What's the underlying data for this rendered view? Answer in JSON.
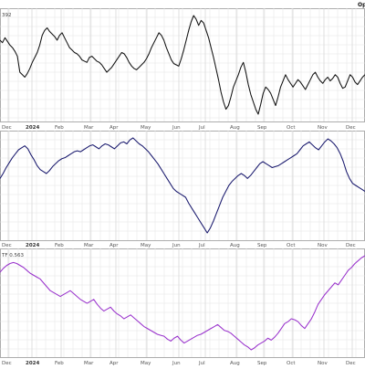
{
  "corner_label": "Op",
  "chart_data": [
    {
      "type": "line",
      "panel_label": "392",
      "color": "#111111",
      "x_tick_labels": [
        "Dec",
        "2024",
        "Feb",
        "Mar",
        "Apr",
        "May",
        "Jun",
        "Jul",
        "Aug",
        "Sep",
        "Oct",
        "Nov",
        "Dec"
      ],
      "grid": true,
      "series": [
        {
          "values": [
            68,
            66,
            70,
            67,
            64,
            62,
            59,
            55,
            42,
            40,
            38,
            41,
            45,
            50,
            54,
            58,
            64,
            72,
            76,
            78,
            75,
            73,
            71,
            68,
            72,
            74,
            70,
            66,
            62,
            60,
            58,
            57,
            55,
            52,
            51,
            50,
            54,
            55,
            53,
            51,
            50,
            48,
            45,
            42,
            44,
            46,
            49,
            52,
            55,
            58,
            57,
            54,
            50,
            47,
            45,
            44,
            46,
            48,
            50,
            53,
            57,
            62,
            66,
            70,
            74,
            72,
            68,
            62,
            57,
            52,
            49,
            48,
            47,
            53,
            60,
            68,
            76,
            83,
            88,
            85,
            80,
            84,
            82,
            76,
            70,
            62,
            54,
            45,
            36,
            26,
            18,
            12,
            15,
            22,
            30,
            35,
            40,
            46,
            50,
            42,
            32,
            24,
            18,
            12,
            8,
            16,
            25,
            30,
            28,
            25,
            20,
            15,
            22,
            30,
            35,
            40,
            36,
            33,
            30,
            33,
            36,
            34,
            31,
            28,
            32,
            36,
            40,
            42,
            38,
            35,
            33,
            36,
            38,
            35,
            37,
            40,
            38,
            33,
            29,
            30,
            35,
            40,
            38,
            34,
            32,
            35,
            38,
            40
          ]
        }
      ]
    },
    {
      "type": "line",
      "panel_label": "",
      "color": "#1a1a6e",
      "x_tick_labels": [
        "Dec",
        "2024",
        "Feb",
        "Mar",
        "Apr",
        "May",
        "Jun",
        "Jul",
        "Aug",
        "Sep",
        "Oct",
        "Nov",
        "Dec"
      ],
      "grid": true,
      "series": [
        {
          "values": [
            55,
            60,
            66,
            71,
            76,
            80,
            84,
            86,
            88,
            85,
            79,
            74,
            68,
            64,
            62,
            60,
            63,
            67,
            70,
            73,
            75,
            76,
            78,
            80,
            82,
            83,
            82,
            84,
            86,
            88,
            89,
            87,
            85,
            88,
            90,
            89,
            87,
            85,
            88,
            91,
            92,
            90,
            94,
            96,
            93,
            90,
            88,
            85,
            82,
            78,
            74,
            70,
            65,
            60,
            55,
            50,
            45,
            42,
            40,
            38,
            36,
            30,
            25,
            20,
            15,
            10,
            5,
            0,
            5,
            12,
            20,
            28,
            36,
            42,
            48,
            52,
            55,
            58,
            60,
            58,
            55,
            58,
            62,
            66,
            70,
            72,
            70,
            68,
            66,
            67,
            68,
            70,
            72,
            74,
            76,
            78,
            80,
            84,
            88,
            90,
            92,
            89,
            86,
            84,
            88,
            92,
            95,
            93,
            90,
            86,
            80,
            72,
            62,
            55,
            50,
            48,
            46,
            44,
            42
          ]
        }
      ]
    },
    {
      "type": "line",
      "panel_label": "TF 0.563",
      "color": "#9932cc",
      "x_tick_labels": [
        "Dec",
        "2024",
        "Feb",
        "Mar",
        "Apr",
        "May",
        "Jun",
        "Jul",
        "Aug",
        "Sep",
        "Oct",
        "Nov",
        "Dec"
      ],
      "grid": true,
      "series": [
        {
          "values": [
            0.83,
            0.87,
            0.9,
            0.92,
            0.93,
            0.92,
            0.9,
            0.88,
            0.85,
            0.82,
            0.8,
            0.78,
            0.76,
            0.72,
            0.68,
            0.64,
            0.62,
            0.6,
            0.58,
            0.6,
            0.62,
            0.64,
            0.61,
            0.58,
            0.55,
            0.53,
            0.51,
            0.53,
            0.55,
            0.5,
            0.46,
            0.43,
            0.45,
            0.47,
            0.43,
            0.4,
            0.38,
            0.35,
            0.37,
            0.39,
            0.36,
            0.33,
            0.3,
            0.27,
            0.25,
            0.23,
            0.21,
            0.19,
            0.18,
            0.17,
            0.14,
            0.12,
            0.15,
            0.17,
            0.13,
            0.1,
            0.12,
            0.14,
            0.16,
            0.18,
            0.19,
            0.21,
            0.23,
            0.25,
            0.27,
            0.29,
            0.26,
            0.23,
            0.22,
            0.2,
            0.17,
            0.14,
            0.11,
            0.08,
            0.06,
            0.03,
            0.05,
            0.08,
            0.1,
            0.12,
            0.15,
            0.13,
            0.16,
            0.2,
            0.25,
            0.3,
            0.32,
            0.35,
            0.34,
            0.32,
            0.28,
            0.25,
            0.3,
            0.35,
            0.42,
            0.5,
            0.55,
            0.6,
            0.64,
            0.68,
            0.72,
            0.7,
            0.75,
            0.8,
            0.85,
            0.88,
            0.92,
            0.95,
            0.98,
            1.0
          ]
        }
      ]
    }
  ]
}
